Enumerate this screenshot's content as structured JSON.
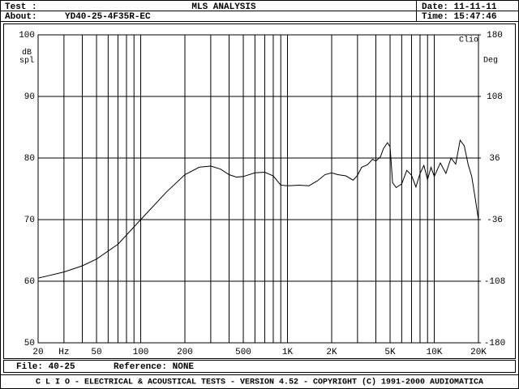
{
  "header": {
    "test_label": "Test :",
    "title": "MLS ANALYSIS",
    "date": "Date: 11-11-11",
    "about_label": "About:",
    "about": "YD40-25-4F35R-EC",
    "time": "Time: 15:47:46"
  },
  "footer": {
    "file": "File: 40-25",
    "reference": "Reference: NONE",
    "banner": "C L I O  -  ELECTRICAL & ACOUSTICAL TESTS  -  VERSION 4.52  -  COPYRIGHT (C) 1991-2000 AUDIOMATICA"
  },
  "chart_data": {
    "type": "line",
    "corner_label": "Clio",
    "y_label": "dB spl",
    "y2_label": "Deg",
    "x": [
      20,
      30,
      40,
      50,
      70,
      100,
      150,
      200,
      250,
      300,
      350,
      400,
      450,
      500,
      600,
      700,
      800,
      900,
      1000,
      1200,
      1400,
      1600,
      1800,
      2000,
      2200,
      2500,
      2800,
      3000,
      3200,
      3500,
      3800,
      4000,
      4300,
      4500,
      4800,
      5000,
      5200,
      5500,
      6000,
      6500,
      7000,
      7500,
      8000,
      8500,
      9000,
      9500,
      10000,
      11000,
      12000,
      13000,
      14000,
      15000,
      16000,
      17000,
      18000,
      19000,
      20000
    ],
    "series": [
      {
        "name": "YD40-25-4F35R-EC",
        "color": "#000000",
        "values": [
          60.5,
          61.5,
          62.5,
          63.6,
          66,
          70,
          74.5,
          77.3,
          78.5,
          78.7,
          78.2,
          77.3,
          76.9,
          77,
          77.6,
          77.7,
          77.1,
          75.6,
          75.5,
          75.6,
          75.5,
          76.3,
          77.3,
          77.6,
          77.3,
          77.1,
          76.4,
          77.2,
          78.5,
          78.9,
          79.8,
          79.5,
          80.2,
          81.5,
          82.5,
          81.8,
          76,
          75.2,
          75.8,
          78,
          77.2,
          75.3,
          77.5,
          78.8,
          76.5,
          78.5,
          77,
          79.2,
          77.5,
          80,
          79,
          82.9,
          82,
          79,
          77,
          73.5,
          70
        ]
      }
    ],
    "xlim": [
      20,
      20000
    ],
    "xlog": true,
    "xticks": [
      20,
      {
        "value": 30,
        "label": "Hz"
      },
      50,
      100,
      200,
      500,
      {
        "value": 1000,
        "label": "1K"
      },
      {
        "value": 2000,
        "label": "2K"
      },
      {
        "value": 5000,
        "label": "5K"
      },
      {
        "value": 10000,
        "label": "10K"
      },
      {
        "value": 20000,
        "label": "20K"
      }
    ],
    "xgrid": [
      20,
      30,
      40,
      50,
      60,
      70,
      80,
      90,
      100,
      200,
      300,
      400,
      500,
      600,
      700,
      800,
      900,
      1000,
      2000,
      3000,
      4000,
      5000,
      6000,
      7000,
      8000,
      9000,
      10000,
      20000
    ],
    "ylim": [
      50,
      100
    ],
    "yticks": [
      50,
      60,
      70,
      80,
      90,
      100
    ],
    "y2lim": [
      -180,
      180
    ],
    "y2ticks": [
      -180,
      -108,
      -36,
      36,
      108,
      180
    ],
    "grid": true
  }
}
